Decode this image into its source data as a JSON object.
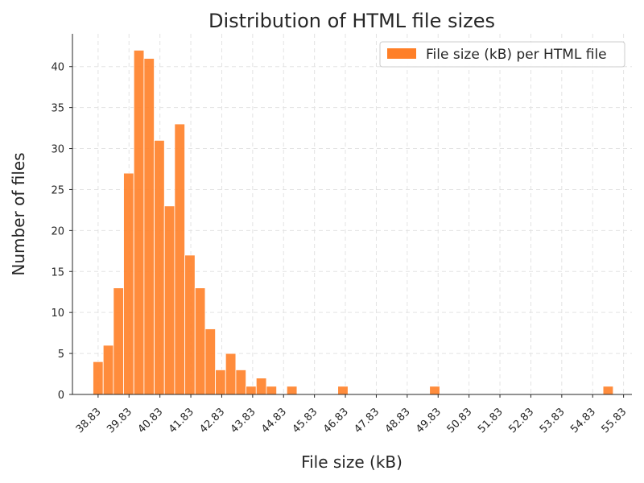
{
  "chart_data": {
    "type": "bar",
    "title": "Distribution of HTML file sizes",
    "xlabel": "File size (kB)",
    "ylabel": "Number of files",
    "legend": {
      "label": "File size (kB) per HTML file",
      "placement": "top-right"
    },
    "grid": true,
    "bar_color": "#ff7f27",
    "bin_width": 0.33,
    "xlim": [
      38.0,
      56.1
    ],
    "ylim": [
      0,
      44
    ],
    "x_ticks": [
      "38.83",
      "39.83",
      "40.83",
      "41.83",
      "42.83",
      "43.83",
      "44.83",
      "45.83",
      "46.83",
      "47.83",
      "48.83",
      "49.83",
      "50.83",
      "51.83",
      "52.83",
      "53.83",
      "54.83",
      "55.83"
    ],
    "y_ticks": [
      0,
      5,
      10,
      15,
      20,
      25,
      30,
      35,
      40
    ],
    "bins": [
      {
        "x": 38.83,
        "count": 4
      },
      {
        "x": 39.16,
        "count": 6
      },
      {
        "x": 39.49,
        "count": 13
      },
      {
        "x": 39.82,
        "count": 27
      },
      {
        "x": 40.15,
        "count": 42
      },
      {
        "x": 40.48,
        "count": 41
      },
      {
        "x": 40.81,
        "count": 31
      },
      {
        "x": 41.14,
        "count": 23
      },
      {
        "x": 41.47,
        "count": 33
      },
      {
        "x": 41.8,
        "count": 17
      },
      {
        "x": 42.13,
        "count": 13
      },
      {
        "x": 42.46,
        "count": 8
      },
      {
        "x": 42.79,
        "count": 3
      },
      {
        "x": 43.12,
        "count": 5
      },
      {
        "x": 43.45,
        "count": 3
      },
      {
        "x": 43.78,
        "count": 1
      },
      {
        "x": 44.11,
        "count": 2
      },
      {
        "x": 44.44,
        "count": 1
      },
      {
        "x": 45.1,
        "count": 1
      },
      {
        "x": 46.75,
        "count": 1
      },
      {
        "x": 49.72,
        "count": 1
      },
      {
        "x": 55.33,
        "count": 1
      }
    ]
  }
}
